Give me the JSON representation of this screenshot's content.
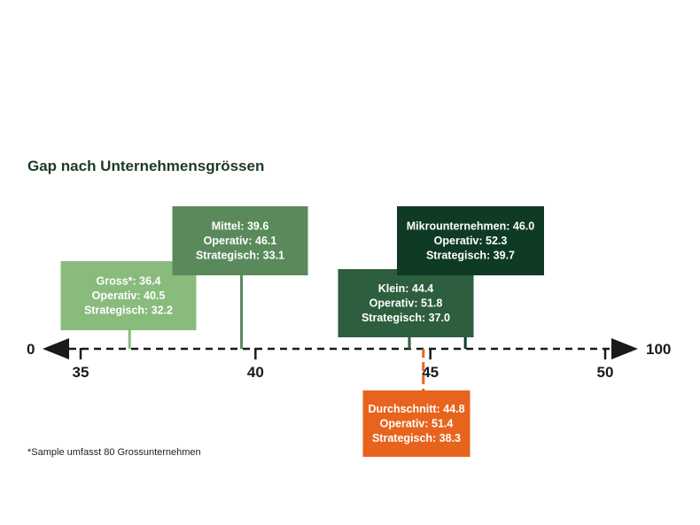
{
  "chart_data": {
    "type": "scale",
    "title": "Gap nach Unternehmensgrössen",
    "axis": {
      "range": [
        35,
        50
      ],
      "ticks": [
        "35",
        "40",
        "45",
        "50"
      ],
      "left_end_label": "0",
      "right_end_label": "100"
    },
    "categories": [
      {
        "name": "Gross*",
        "label": "Gross*: 36.4",
        "value": 36.4,
        "operativ": 40.5,
        "operativ_label": "Operativ: 40.5",
        "strategisch": 32.2,
        "strategisch_label": "Strategisch: 32.2",
        "color": "#88bb7c",
        "side": "above"
      },
      {
        "name": "Mittel",
        "label": "Mittel: 39.6",
        "value": 39.6,
        "operativ": 46.1,
        "operativ_label": "Operativ: 46.1",
        "strategisch": 33.1,
        "strategisch_label": "Strategisch: 33.1",
        "color": "#5a8a5c",
        "side": "above"
      },
      {
        "name": "Klein",
        "label": "Klein: 44.4",
        "value": 44.4,
        "operativ": 51.8,
        "operativ_label": "Operativ: 51.8",
        "strategisch": 37.0,
        "strategisch_label": "Strategisch: 37.0",
        "color": "#2d5e3e",
        "side": "above"
      },
      {
        "name": "Mikrounternehmen",
        "label": "Mikrounternehmen: 46.0",
        "value": 46.0,
        "operativ": 52.3,
        "operativ_label": "Operativ: 52.3",
        "strategisch": 39.7,
        "strategisch_label": "Strategisch: 39.7",
        "color": "#0f3b25",
        "side": "above"
      },
      {
        "name": "Durchschnitt",
        "label": "Durchschnitt: 44.8",
        "value": 44.8,
        "operativ": 51.4,
        "operativ_label": "Operativ: 51.4",
        "strategisch": 38.3,
        "strategisch_label": "Strategisch: 38.3",
        "color": "#e8641e",
        "side": "below"
      }
    ],
    "footnote": "*Sample umfasst 80 Grossunternehmen"
  }
}
